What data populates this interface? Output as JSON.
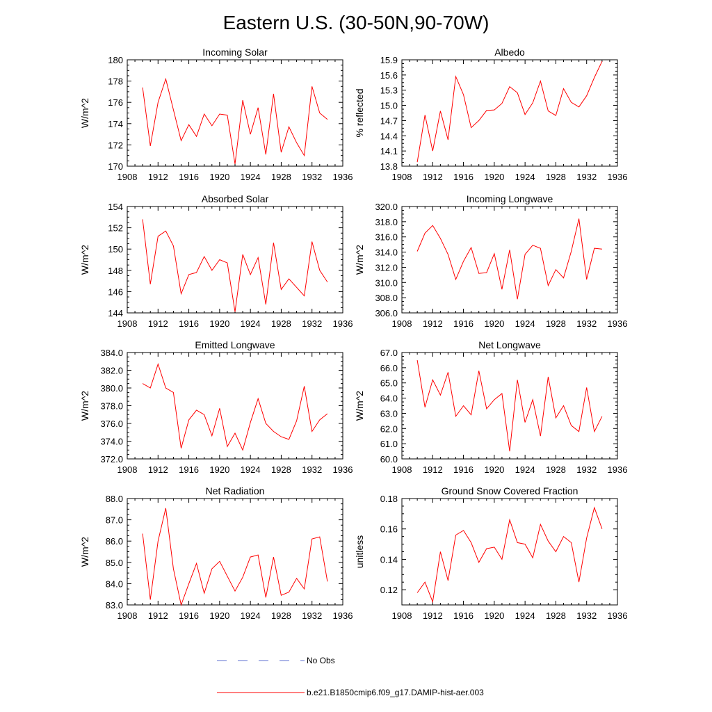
{
  "figure": {
    "title": "Eastern U.S. (30-50N,90-70W)"
  },
  "legend": {
    "entries": [
      {
        "label": "No Obs",
        "color": "#5c6fd0",
        "style": "dashed"
      },
      {
        "label": "b.e21.B1850cmip6.f09_g17.DAMIP-hist-aer.003",
        "color": "#ff0000",
        "style": "solid"
      }
    ]
  },
  "colors": {
    "series": "#ff0000",
    "axis": "#000000"
  },
  "chart_data": [
    {
      "type": "line",
      "title": "Incoming Solar",
      "xlabel": "",
      "ylabel": "W/m^2",
      "xlim": [
        1908,
        1936
      ],
      "ylim": [
        170,
        180
      ],
      "xticks": [
        1908,
        1912,
        1916,
        1920,
        1924,
        1928,
        1932,
        1936
      ],
      "xtick_labels": [
        "1908",
        "1912",
        "1916",
        "1920",
        "1924",
        "1928",
        "1932",
        "1936"
      ],
      "yticks": [
        170,
        172,
        174,
        176,
        178,
        180
      ],
      "ytick_labels": [
        "170",
        "172",
        "174",
        "176",
        "178",
        "180"
      ],
      "x": [
        1910,
        1911,
        1912,
        1913,
        1914,
        1915,
        1916,
        1917,
        1918,
        1919,
        1920,
        1921,
        1922,
        1923,
        1924,
        1925,
        1926,
        1927,
        1928,
        1929,
        1930,
        1931,
        1932,
        1933,
        1934
      ],
      "series": [
        {
          "values": [
            177.4,
            171.9,
            176.0,
            178.2,
            175.3,
            172.4,
            173.9,
            172.8,
            174.9,
            173.8,
            174.9,
            174.8,
            170.2,
            176.2,
            173.0,
            175.5,
            171.1,
            176.8,
            171.3,
            173.7,
            172.2,
            171.0,
            177.5,
            175.0,
            174.4
          ]
        }
      ]
    },
    {
      "type": "line",
      "title": "Albedo",
      "xlabel": "",
      "ylabel": "% reflected",
      "xlim": [
        1908,
        1936
      ],
      "ylim": [
        13.8,
        15.9
      ],
      "xticks": [
        1908,
        1912,
        1916,
        1920,
        1924,
        1928,
        1932,
        1936
      ],
      "xtick_labels": [
        "1908",
        "1912",
        "1916",
        "1920",
        "1924",
        "1928",
        "1932",
        "1936"
      ],
      "yticks": [
        13.8,
        14.1,
        14.4,
        14.7,
        15.0,
        15.3,
        15.6,
        15.9
      ],
      "ytick_labels": [
        "13.8",
        "14.1",
        "14.4",
        "14.7",
        "15.0",
        "15.3",
        "15.6",
        "15.9"
      ],
      "x": [
        1910,
        1911,
        1912,
        1913,
        1914,
        1915,
        1916,
        1917,
        1918,
        1919,
        1920,
        1921,
        1922,
        1923,
        1924,
        1925,
        1926,
        1927,
        1928,
        1929,
        1930,
        1931,
        1932,
        1933,
        1934
      ],
      "series": [
        {
          "values": [
            13.88,
            14.81,
            14.1,
            14.89,
            14.32,
            15.57,
            15.21,
            14.56,
            14.7,
            14.9,
            14.91,
            15.04,
            15.37,
            15.25,
            14.82,
            15.05,
            15.48,
            14.89,
            14.8,
            15.33,
            15.06,
            14.97,
            15.19,
            15.55,
            15.87
          ]
        }
      ]
    },
    {
      "type": "line",
      "title": "Absorbed Solar",
      "xlabel": "",
      "ylabel": "W/m^2",
      "xlim": [
        1908,
        1936
      ],
      "ylim": [
        144,
        154
      ],
      "xticks": [
        1908,
        1912,
        1916,
        1920,
        1924,
        1928,
        1932,
        1936
      ],
      "xtick_labels": [
        "1908",
        "1912",
        "1916",
        "1920",
        "1924",
        "1928",
        "1932",
        "1936"
      ],
      "yticks": [
        144,
        146,
        148,
        150,
        152,
        154
      ],
      "ytick_labels": [
        "144",
        "146",
        "148",
        "150",
        "152",
        "154"
      ],
      "x": [
        1910,
        1911,
        1912,
        1913,
        1914,
        1915,
        1916,
        1917,
        1918,
        1919,
        1920,
        1921,
        1922,
        1923,
        1924,
        1925,
        1926,
        1927,
        1928,
        1929,
        1930,
        1931,
        1932,
        1933,
        1934
      ],
      "series": [
        {
          "values": [
            152.8,
            146.7,
            151.2,
            151.7,
            150.3,
            145.8,
            147.6,
            147.8,
            149.3,
            148.0,
            149.0,
            148.7,
            144.1,
            149.5,
            147.6,
            149.2,
            144.8,
            150.6,
            146.2,
            147.2,
            146.4,
            145.6,
            150.7,
            148.0,
            146.9
          ]
        }
      ]
    },
    {
      "type": "line",
      "title": "Incoming Longwave",
      "xlabel": "",
      "ylabel": "W/m^2",
      "xlim": [
        1908,
        1936
      ],
      "ylim": [
        306,
        320
      ],
      "xticks": [
        1908,
        1912,
        1916,
        1920,
        1924,
        1928,
        1932,
        1936
      ],
      "xtick_labels": [
        "1908",
        "1912",
        "1916",
        "1920",
        "1924",
        "1928",
        "1932",
        "1936"
      ],
      "yticks": [
        306,
        308,
        310,
        312,
        314,
        316,
        318,
        320
      ],
      "ytick_labels": [
        "306.0",
        "308.0",
        "310.0",
        "312.0",
        "314.0",
        "316.0",
        "318.0",
        "320.0"
      ],
      "x": [
        1910,
        1911,
        1912,
        1913,
        1914,
        1915,
        1916,
        1917,
        1918,
        1919,
        1920,
        1921,
        1922,
        1923,
        1924,
        1925,
        1926,
        1927,
        1928,
        1929,
        1930,
        1931,
        1932,
        1933,
        1934
      ],
      "series": [
        {
          "values": [
            314.1,
            316.5,
            317.5,
            315.8,
            313.7,
            310.4,
            312.8,
            314.6,
            311.2,
            311.3,
            313.8,
            309.1,
            314.3,
            307.8,
            313.7,
            314.9,
            314.5,
            309.6,
            311.7,
            310.6,
            314.1,
            318.4,
            310.4,
            314.5,
            314.4
          ]
        }
      ]
    },
    {
      "type": "line",
      "title": "Emitted Longwave",
      "xlabel": "",
      "ylabel": "W/m^2",
      "xlim": [
        1908,
        1936
      ],
      "ylim": [
        372,
        384
      ],
      "xticks": [
        1908,
        1912,
        1916,
        1920,
        1924,
        1928,
        1932,
        1936
      ],
      "xtick_labels": [
        "1908",
        "1912",
        "1916",
        "1920",
        "1924",
        "1928",
        "1932",
        "1936"
      ],
      "yticks": [
        372,
        374,
        376,
        378,
        380,
        382,
        384
      ],
      "ytick_labels": [
        "372.0",
        "374.0",
        "376.0",
        "378.0",
        "380.0",
        "382.0",
        "384.0"
      ],
      "x": [
        1910,
        1911,
        1912,
        1913,
        1914,
        1915,
        1916,
        1917,
        1918,
        1919,
        1920,
        1921,
        1922,
        1923,
        1924,
        1925,
        1926,
        1927,
        1928,
        1929,
        1930,
        1931,
        1932,
        1933,
        1934
      ],
      "series": [
        {
          "values": [
            380.5,
            380.0,
            382.7,
            380.0,
            379.5,
            373.2,
            376.4,
            377.5,
            377.0,
            374.6,
            377.7,
            373.4,
            374.9,
            373.0,
            376.1,
            378.8,
            376.0,
            375.1,
            374.5,
            374.2,
            376.3,
            380.2,
            375.1,
            376.4,
            377.1
          ]
        }
      ]
    },
    {
      "type": "line",
      "title": "Net Longwave",
      "xlabel": "",
      "ylabel": "W/m^2",
      "xlim": [
        1908,
        1936
      ],
      "ylim": [
        60,
        67
      ],
      "xticks": [
        1908,
        1912,
        1916,
        1920,
        1924,
        1928,
        1932,
        1936
      ],
      "xtick_labels": [
        "1908",
        "1912",
        "1916",
        "1920",
        "1924",
        "1928",
        "1932",
        "1936"
      ],
      "yticks": [
        60,
        61,
        62,
        63,
        64,
        65,
        66,
        67
      ],
      "ytick_labels": [
        "60.0",
        "61.0",
        "62.0",
        "63.0",
        "64.0",
        "65.0",
        "66.0",
        "67.0"
      ],
      "x": [
        1910,
        1911,
        1912,
        1913,
        1914,
        1915,
        1916,
        1917,
        1918,
        1919,
        1920,
        1921,
        1922,
        1923,
        1924,
        1925,
        1926,
        1927,
        1928,
        1929,
        1930,
        1931,
        1932,
        1933,
        1934
      ],
      "series": [
        {
          "values": [
            66.5,
            63.4,
            65.2,
            64.2,
            65.7,
            62.8,
            63.5,
            62.9,
            65.8,
            63.3,
            63.9,
            64.3,
            60.5,
            65.2,
            62.4,
            63.9,
            61.5,
            65.4,
            62.7,
            63.5,
            62.2,
            61.8,
            64.7,
            61.8,
            62.8
          ]
        }
      ]
    },
    {
      "type": "line",
      "title": "Net Radiation",
      "xlabel": "",
      "ylabel": "W/m^2",
      "xlim": [
        1908,
        1936
      ],
      "ylim": [
        83,
        88
      ],
      "xticks": [
        1908,
        1912,
        1916,
        1920,
        1924,
        1928,
        1932,
        1936
      ],
      "xtick_labels": [
        "1908",
        "1912",
        "1916",
        "1920",
        "1924",
        "1928",
        "1932",
        "1936"
      ],
      "yticks": [
        83,
        84,
        85,
        86,
        87,
        88
      ],
      "ytick_labels": [
        "83.0",
        "84.0",
        "85.0",
        "86.0",
        "87.0",
        "88.0"
      ],
      "x": [
        1910,
        1911,
        1912,
        1913,
        1914,
        1915,
        1916,
        1917,
        1918,
        1919,
        1920,
        1921,
        1922,
        1923,
        1924,
        1925,
        1926,
        1927,
        1928,
        1929,
        1930,
        1931,
        1932,
        1933,
        1934
      ],
      "series": [
        {
          "values": [
            86.35,
            83.25,
            86.0,
            87.55,
            84.7,
            83.0,
            84.0,
            84.95,
            83.55,
            84.7,
            85.05,
            84.35,
            83.65,
            84.3,
            85.25,
            85.35,
            83.35,
            85.25,
            83.45,
            83.6,
            84.25,
            83.75,
            86.1,
            86.2,
            84.1
          ]
        }
      ]
    },
    {
      "type": "line",
      "title": "Ground Snow Covered Fraction",
      "xlabel": "",
      "ylabel": "unitless",
      "xlim": [
        1908,
        1936
      ],
      "ylim": [
        0.11,
        0.18
      ],
      "xticks": [
        1908,
        1912,
        1916,
        1920,
        1924,
        1928,
        1932,
        1936
      ],
      "xtick_labels": [
        "1908",
        "1912",
        "1916",
        "1920",
        "1924",
        "1928",
        "1932",
        "1936"
      ],
      "yticks": [
        0.12,
        0.14,
        0.16,
        0.18
      ],
      "ytick_labels": [
        "0.12",
        "0.14",
        "0.16",
        "0.18"
      ],
      "x": [
        1910,
        1911,
        1912,
        1913,
        1914,
        1915,
        1916,
        1917,
        1918,
        1919,
        1920,
        1921,
        1922,
        1923,
        1924,
        1925,
        1926,
        1927,
        1928,
        1929,
        1930,
        1931,
        1932,
        1933,
        1934
      ],
      "series": [
        {
          "values": [
            0.118,
            0.125,
            0.112,
            0.145,
            0.126,
            0.156,
            0.159,
            0.151,
            0.138,
            0.147,
            0.148,
            0.14,
            0.166,
            0.151,
            0.15,
            0.141,
            0.163,
            0.152,
            0.145,
            0.155,
            0.151,
            0.125,
            0.154,
            0.174,
            0.16
          ]
        }
      ]
    }
  ]
}
